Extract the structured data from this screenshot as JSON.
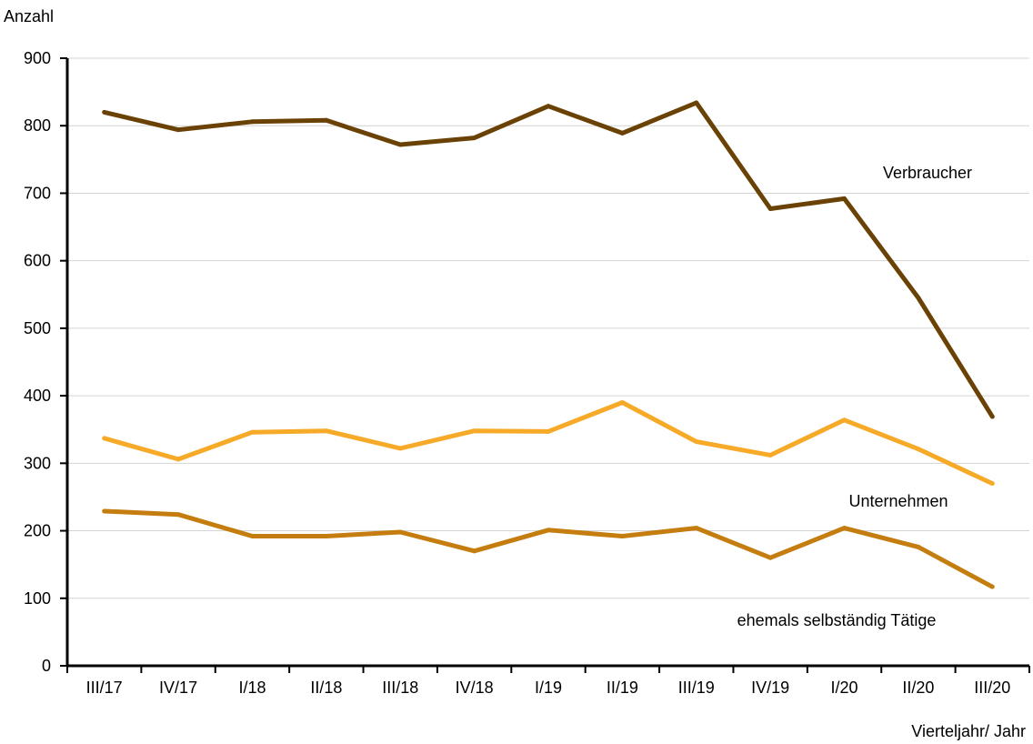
{
  "chart_data": {
    "type": "line",
    "ylabel": "Anzahl",
    "xlabel": "Vierteljahr/ Jahr",
    "ylim": [
      0,
      900
    ],
    "yticks": [
      0,
      100,
      200,
      300,
      400,
      500,
      600,
      700,
      800,
      900
    ],
    "grid": true,
    "categories": [
      "III/17",
      "IV/17",
      "I/18",
      "II/18",
      "III/18",
      "IV/18",
      "I/19",
      "II/19",
      "III/19",
      "IV/19",
      "I/20",
      "II/20",
      "III/20"
    ],
    "series": [
      {
        "name": "Verbraucher",
        "color": "#6b4206",
        "values": [
          820,
          794,
          806,
          808,
          772,
          782,
          829,
          789,
          834,
          677,
          692,
          545,
          369
        ]
      },
      {
        "name": "Unternehmen",
        "color": "#f7a928",
        "values": [
          337,
          306,
          346,
          348,
          322,
          348,
          347,
          390,
          332,
          312,
          364,
          321,
          270
        ]
      },
      {
        "name": "ehemals selbständig Tätige",
        "color": "#c47d0e",
        "values": [
          229,
          224,
          192,
          192,
          198,
          170,
          201,
          192,
          204,
          160,
          204,
          176,
          117
        ]
      }
    ]
  }
}
